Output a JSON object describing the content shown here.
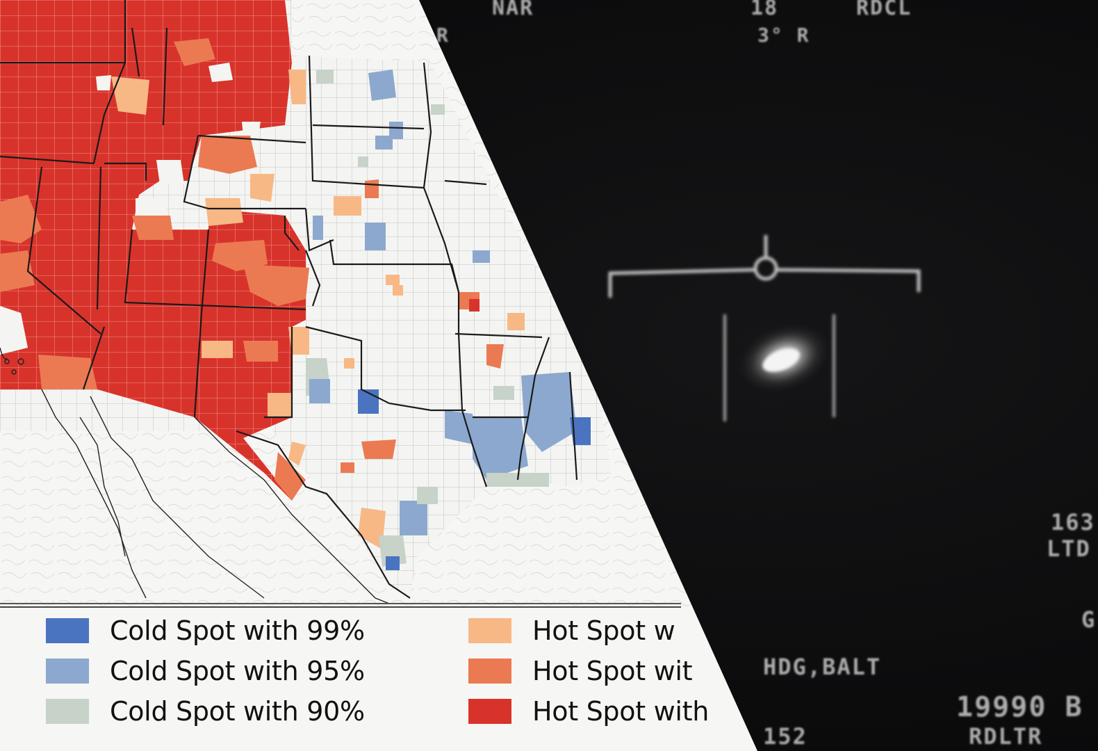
{
  "map": {
    "legend": [
      {
        "label": "Cold Spot with 99%",
        "color": "#4a74c0"
      },
      {
        "label": "Cold Spot with 95%",
        "color": "#8ca8cf"
      },
      {
        "label": "Cold Spot with 90%",
        "color": "#c7d2c8"
      },
      {
        "label": "Hot Spot w",
        "color": "#f7b886"
      },
      {
        "label": "Hot Spot wit",
        "color": "#eb7a52"
      },
      {
        "label": "Hot Spot with",
        "color": "#d8332b"
      }
    ],
    "colors": {
      "no_significance": "#f4f5f2",
      "county_border": "#9a9a9a",
      "state_border": "#1a1a1a",
      "ocean": "#f6f6f4"
    }
  },
  "flir": {
    "hud": {
      "top_left": "NAR",
      "top_mid": "18",
      "top_right": "RDCL",
      "bearing": "3° R",
      "left_edge": "R",
      "mode": "HDG,BALT",
      "right_mid_1": "163",
      "right_mid_2": "LTD",
      "right_lower": "G",
      "altitude": "19990 B",
      "lower_right": "RDLTR",
      "bottom": "152"
    },
    "colors": {
      "background": "#0b0b0c",
      "symbology": "#d8d8d8"
    }
  }
}
